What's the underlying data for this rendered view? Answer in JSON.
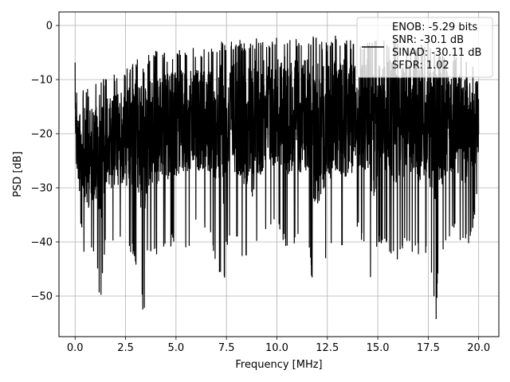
{
  "chart_data": {
    "type": "line",
    "title": "",
    "xlabel": "Frequency [MHz]",
    "ylabel": "PSD [dB]",
    "xlim": [
      -0.8,
      21.0
    ],
    "ylim": [
      -57.5,
      2.5
    ],
    "x_ticks": [
      0.0,
      2.5,
      5.0,
      7.5,
      10.0,
      12.5,
      15.0,
      17.5,
      20.0
    ],
    "x_tick_labels": [
      "0.0",
      "2.5",
      "5.0",
      "7.5",
      "10.0",
      "12.5",
      "15.0",
      "17.5",
      "20.0"
    ],
    "y_ticks": [
      0,
      -10,
      -20,
      -30,
      -40,
      -50
    ],
    "y_tick_labels": [
      "0",
      "−10",
      "−20",
      "−30",
      "−40",
      "−50"
    ],
    "grid": true,
    "legend_position": "top-right",
    "series": [
      {
        "color": "#000000",
        "x": [
          0.0,
          0.05,
          0.1,
          0.2,
          0.3,
          0.4,
          0.5,
          0.6,
          0.8,
          1.0,
          1.2,
          1.25,
          1.4,
          1.5,
          1.6,
          1.8,
          2.0,
          2.5,
          3.0,
          3.4,
          3.6,
          4.0,
          4.5,
          5.0,
          5.5,
          6.0,
          6.5,
          7.0,
          7.35,
          7.5,
          8.0,
          8.5,
          8.8,
          9.0,
          9.5,
          10.0,
          10.5,
          11.0,
          11.5,
          12.0,
          12.5,
          13.0,
          13.5,
          14.0,
          14.5,
          14.8,
          15.0,
          15.5,
          16.0,
          16.5,
          17.0,
          17.5,
          17.9,
          18.0,
          18.5,
          19.0,
          19.5,
          20.0
        ],
        "max": [
          0.0,
          -12.0,
          -11.0,
          -12.5,
          -12.0,
          -11.5,
          -11.0,
          -11.5,
          -11.0,
          -10.0,
          -11.0,
          -10.5,
          -9.5,
          -10.0,
          -9.0,
          -9.5,
          -8.5,
          -8.0,
          -6.0,
          -7.0,
          -5.5,
          -4.5,
          -5.0,
          -4.0,
          -4.5,
          -4.0,
          -4.5,
          -3.5,
          -2.5,
          -3.0,
          -2.5,
          -3.0,
          -3.5,
          -2.0,
          -2.5,
          -2.0,
          -1.5,
          -2.5,
          -2.0,
          -2.0,
          -3.0,
          -1.5,
          -2.5,
          -3.0,
          -2.0,
          -2.5,
          -3.0,
          -2.0,
          -2.5,
          -3.0,
          -3.5,
          -3.0,
          -3.5,
          -4.0,
          -4.5,
          -5.0,
          -5.5,
          -6.0
        ],
        "min": [
          -17.0,
          -32.0,
          -35.0,
          -40.0,
          -38.0,
          -42.0,
          -44.0,
          -47.0,
          -42.0,
          -45.0,
          -50.0,
          -53.5,
          -46.0,
          -40.0,
          -38.0,
          -42.0,
          -39.0,
          -41.0,
          -44.0,
          -54.0,
          -43.0,
          -44.0,
          -42.0,
          -40.0,
          -42.0,
          -38.0,
          -39.0,
          -44.0,
          -51.0,
          -41.0,
          -40.0,
          -45.0,
          -48.5,
          -42.0,
          -40.0,
          -38.0,
          -42.0,
          -40.0,
          -41.0,
          -54.0,
          -43.0,
          -41.0,
          -42.0,
          -38.0,
          -43.0,
          -53.0,
          -40.0,
          -42.0,
          -44.0,
          -41.0,
          -43.0,
          -42.0,
          -54.5,
          -45.0,
          -39.0,
          -40.0,
          -42.0,
          -32.0
        ]
      }
    ]
  },
  "legend": {
    "lines": [
      "ENOB: -5.29 bits",
      "SNR: -30.1 dB",
      "SINAD: -30.11 dB",
      "SFDR: 1.02"
    ]
  }
}
